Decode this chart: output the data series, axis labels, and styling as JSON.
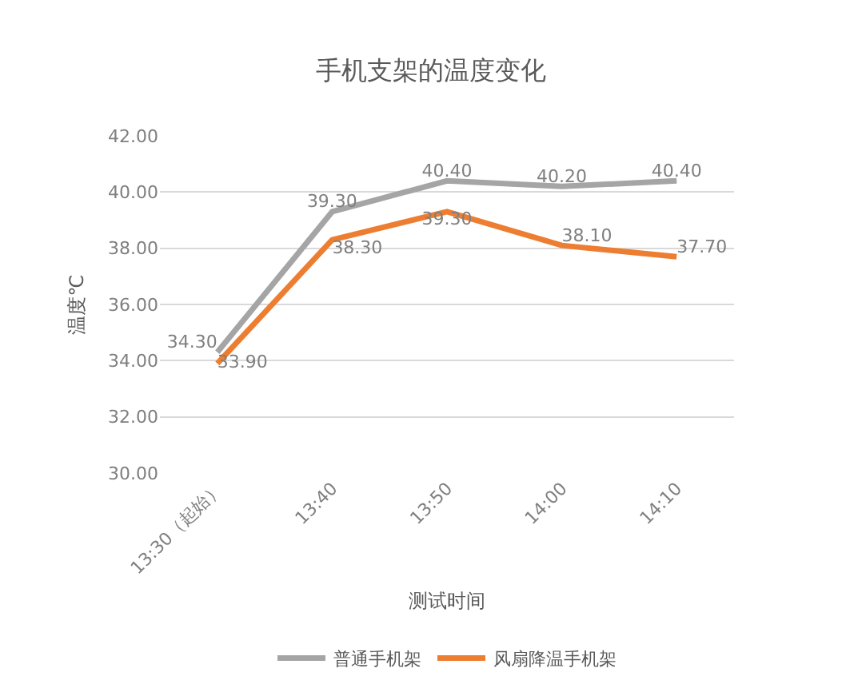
{
  "chart_data": {
    "type": "line",
    "title": "手机支架的温度变化",
    "xlabel": "测试时间",
    "ylabel": "温度℃",
    "categories": [
      "13:30（起始）",
      "13:40",
      "13:50",
      "14:00",
      "14:10"
    ],
    "series": [
      {
        "name": "普通手机架",
        "color": "#a5a5a5",
        "values": [
          34.3,
          39.3,
          40.4,
          40.2,
          40.4
        ],
        "value_labels": [
          "34.30",
          "39.30",
          "40.40",
          "40.20",
          "40.40"
        ]
      },
      {
        "name": "风扇降温手机架",
        "color": "#ed7d31",
        "values": [
          33.9,
          38.3,
          39.3,
          38.1,
          37.7
        ],
        "value_labels": [
          "33.90",
          "38.30",
          "39.30",
          "38.10",
          "37.70"
        ]
      }
    ],
    "ylim": [
      30,
      42
    ],
    "yticks": [
      {
        "value": 30,
        "label": "30.00"
      },
      {
        "value": 32,
        "label": "32.00"
      },
      {
        "value": 34,
        "label": "34.00"
      },
      {
        "value": 36,
        "label": "36.00"
      },
      {
        "value": 38,
        "label": "38.00"
      },
      {
        "value": 40,
        "label": "40.00"
      },
      {
        "value": 42,
        "label": "42.00"
      }
    ],
    "grid": "y",
    "legend": "bottom",
    "marker": "none",
    "line_style": "solid"
  }
}
